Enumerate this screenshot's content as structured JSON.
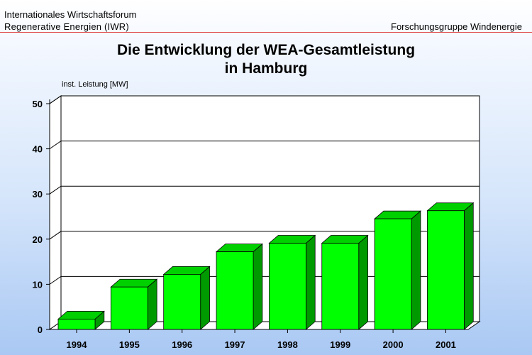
{
  "header": {
    "org_line1": "Internationales Wirtschaftsforum",
    "org_line2": "Regenerative Energien (IWR)",
    "group": "Forschungsgruppe Windenergie"
  },
  "colors": {
    "bar_front": "#00ff00",
    "bar_top": "#00d000",
    "bar_side": "#009a00",
    "header_rule": "#e04040"
  },
  "chart_data": {
    "type": "bar",
    "title": "Die Entwicklung der WEA-Gesamtleistung",
    "subtitle": "in Hamburg",
    "ylabel": "inst. Leistung [MW]",
    "xlabel": "",
    "categories": [
      "1994",
      "1995",
      "1996",
      "1997",
      "1998",
      "1999",
      "2000",
      "2001"
    ],
    "values": [
      2.3,
      9.4,
      12.2,
      17.2,
      19.1,
      19.1,
      24.5,
      26.3
    ],
    "ylim": [
      0,
      50
    ],
    "yticks": [
      0,
      10,
      20,
      30,
      40,
      50
    ],
    "grid": true,
    "style": "3d"
  }
}
